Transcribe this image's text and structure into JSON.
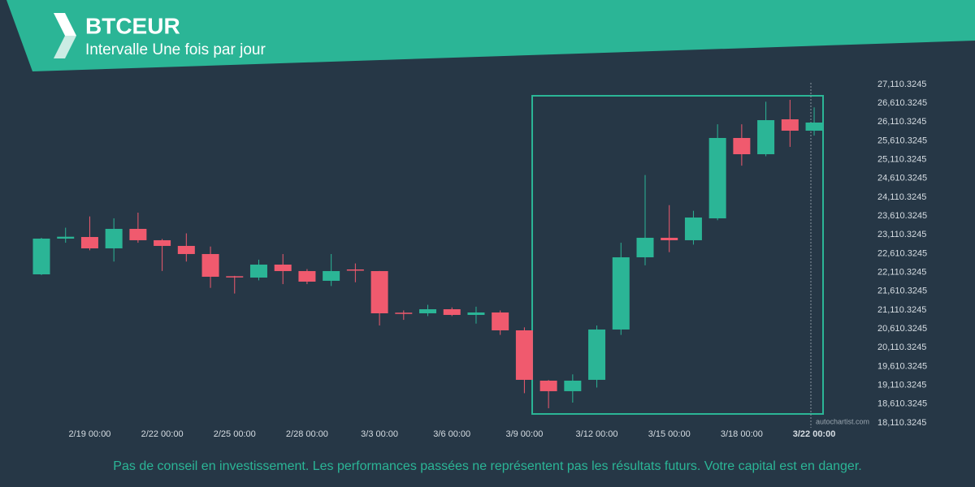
{
  "chart_data": {
    "type": "candlestick",
    "title": "BTCEUR",
    "subtitle": "Intervalle Une fois par jour",
    "footer": "Pas de conseil en investissement. Les performances passées ne représentent pas les résultats futurs. Votre capital est en danger.",
    "watermark": "autochartist.com",
    "up_color": "#2bb596",
    "down_color": "#f05a6e",
    "categories": [
      null,
      null,
      "2/19 00:00",
      null,
      null,
      "2/22 00:00",
      null,
      null,
      "2/25 00:00",
      null,
      null,
      "2/28 00:00",
      null,
      null,
      "3/3 00:00",
      null,
      null,
      "3/6 00:00",
      null,
      null,
      "3/9 00:00",
      null,
      null,
      "3/12 00:00",
      null,
      null,
      "3/15 00:00",
      null,
      null,
      "3/18 00:00",
      null,
      null,
      "3/22 00:00"
    ],
    "open": [
      22060,
      23010,
      23053,
      22751,
      23269,
      22967,
      22816,
      22600,
      22010,
      21974,
      22319,
      22147,
      21888,
      22190,
      22147,
      21040,
      21024,
      21132,
      20981,
      21046,
      20571,
      19233,
      18953,
      19255,
      20593,
      22513,
      23032,
      22967,
      23549,
      25686,
      25254,
      26182,
      25880
    ],
    "high": [
      23030,
      23300,
      23600,
      23550,
      23700,
      23000,
      23150,
      22800,
      22020,
      22450,
      22600,
      22200,
      22600,
      22350,
      22150,
      21100,
      21250,
      21180,
      21200,
      21100,
      20650,
      19250,
      19400,
      20700,
      22900,
      24700,
      23900,
      23750,
      26050,
      26050,
      26650,
      26700,
      26500
    ],
    "low": [
      22040,
      22900,
      22700,
      22400,
      22900,
      22150,
      22400,
      21700,
      21550,
      21900,
      21800,
      21800,
      21750,
      21850,
      20700,
      20850,
      20950,
      20950,
      20750,
      20450,
      18900,
      18500,
      18650,
      19050,
      20450,
      22300,
      22650,
      22850,
      23500,
      24950,
      25200,
      25450,
      25750
    ],
    "close": [
      23010,
      23060,
      22751,
      23269,
      22967,
      22816,
      22600,
      21996,
      21996,
      22319,
      22147,
      21866,
      22147,
      22170,
      21024,
      21020,
      21132,
      20981,
      21046,
      20571,
      19255,
      18953,
      19233,
      20593,
      22513,
      23032,
      22967,
      23571,
      25686,
      25254,
      26160,
      25880,
      26096
    ],
    "ylim": [
      18110.3245,
      27110.3245
    ],
    "yticks": [
      {
        "value": 18110.3245,
        "label": "18,110.3245"
      },
      {
        "value": 18610.3245,
        "label": "18,610.3245"
      },
      {
        "value": 19110.3245,
        "label": "19,110.3245"
      },
      {
        "value": 19610.3245,
        "label": "19,610.3245"
      },
      {
        "value": 20110.3245,
        "label": "20,110.3245"
      },
      {
        "value": 20610.3245,
        "label": "20,610.3245"
      },
      {
        "value": 21110.3245,
        "label": "21,110.3245"
      },
      {
        "value": 21610.3245,
        "label": "21,610.3245"
      },
      {
        "value": 22110.3245,
        "label": "22,110.3245"
      },
      {
        "value": 22610.3245,
        "label": "22,610.3245"
      },
      {
        "value": 23110.3245,
        "label": "23,110.3245"
      },
      {
        "value": 23610.3245,
        "label": "23,610.3245"
      },
      {
        "value": 24110.3245,
        "label": "24,110.3245"
      },
      {
        "value": 24610.3245,
        "label": "24,610.3245"
      },
      {
        "value": 25110.3245,
        "label": "25,110.3245"
      },
      {
        "value": 25610.3245,
        "label": "25,610.3245"
      },
      {
        "value": 26110.3245,
        "label": "26,110.3245"
      },
      {
        "value": 26610.3245,
        "label": "26,610.3245"
      },
      {
        "value": 27110.3245,
        "label": "27,110.3245"
      }
    ]
  }
}
